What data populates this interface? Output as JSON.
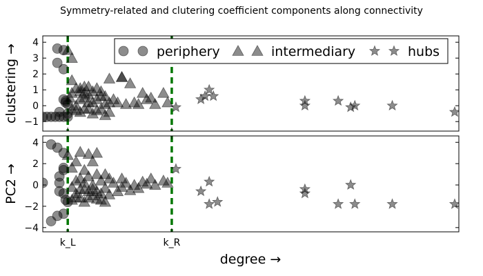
{
  "chart_data": {
    "type": "scatter",
    "title": "Symmetry-related and clutering coefficient components along connectivity",
    "xlabel": "degree →",
    "xlim": [
      0,
      100
    ],
    "vlines": [
      {
        "x": 6,
        "label": "k_L",
        "color": "#007700"
      },
      {
        "x": 31,
        "label": "k_R",
        "color": "#007700"
      }
    ],
    "legend": {
      "placement": "top-right",
      "entries": [
        {
          "name": "periphery",
          "marker": "circle"
        },
        {
          "name": "intermediary",
          "marker": "triangle"
        },
        {
          "name": "hubs",
          "marker": "star"
        }
      ]
    },
    "subplots": [
      {
        "ylabel": "clustering →",
        "ylim": [
          -1.6,
          4.4
        ],
        "yticks": [
          "4",
          "3",
          "2",
          "1",
          "0",
          "−1"
        ],
        "ytick_values": [
          4,
          3,
          2,
          1,
          0,
          -1
        ],
        "series": [
          {
            "name": "periphery",
            "marker": "circle",
            "points": [
              [
                0,
                -0.7
              ],
              [
                1,
                -0.7
              ],
              [
                2,
                -0.7
              ],
              [
                3,
                -0.7
              ],
              [
                4,
                -0.7
              ],
              [
                5,
                -0.7
              ],
              [
                6,
                -0.7
              ],
              [
                3.5,
                3.6
              ],
              [
                5,
                3.5
              ],
              [
                3.5,
                2.7
              ],
              [
                5,
                2.3
              ],
              [
                5,
                0.4
              ],
              [
                5.5,
                0.2
              ],
              [
                6,
                0.1
              ],
              [
                4,
                -0.4
              ],
              [
                5.5,
                0.3
              ],
              [
                6,
                -0.5
              ]
            ]
          },
          {
            "name": "intermediary",
            "marker": "triangle",
            "points": [
              [
                6,
                3.5
              ],
              [
                7,
                3.0
              ],
              [
                7,
                1.6
              ],
              [
                7,
                0.8
              ],
              [
                8,
                1.1
              ],
              [
                8,
                -0.3
              ],
              [
                9,
                0.4
              ],
              [
                9,
                1.1
              ],
              [
                10,
                -0.2
              ],
              [
                10,
                0.8
              ],
              [
                11,
                1.2
              ],
              [
                11,
                0.2
              ],
              [
                12,
                -0.5
              ],
              [
                12,
                0.9
              ],
              [
                13,
                1.1
              ],
              [
                13,
                0.4
              ],
              [
                14,
                -0.2
              ],
              [
                14,
                0.9
              ],
              [
                15,
                0.6
              ],
              [
                15,
                -0.6
              ],
              [
                16,
                1.7
              ],
              [
                16,
                0.2
              ],
              [
                17,
                0.4
              ],
              [
                18,
                0.2
              ],
              [
                19,
                1.8
              ],
              [
                19,
                1.8
              ],
              [
                20,
                0.1
              ],
              [
                21,
                1.4
              ],
              [
                22,
                0.2
              ],
              [
                23,
                0.1
              ],
              [
                24,
                0.8
              ],
              [
                25,
                0.4
              ],
              [
                26,
                0.5
              ],
              [
                27,
                0.1
              ],
              [
                29,
                0.8
              ],
              [
                30,
                0.2
              ],
              [
                8,
                0.0
              ],
              [
                9,
                -0.4
              ],
              [
                10,
                0.5
              ],
              [
                11,
                -0.2
              ],
              [
                12,
                0.2
              ],
              [
                7,
                -0.2
              ],
              [
                6.5,
                0.5
              ],
              [
                14,
                0.6
              ],
              [
                13,
                -0.3
              ],
              [
                15,
                0.1
              ],
              [
                16,
                -0.4
              ],
              [
                9,
                0.9
              ],
              [
                10,
                1.2
              ],
              [
                11,
                0.7
              ]
            ]
          },
          {
            "name": "hubs",
            "marker": "star",
            "points": [
              [
                32,
                -0.1
              ],
              [
                38,
                0.4
              ],
              [
                40,
                1.0
              ],
              [
                39,
                0.6
              ],
              [
                41,
                0.6
              ],
              [
                63,
                0.3
              ],
              [
                63,
                0.0
              ],
              [
                71,
                0.3
              ],
              [
                74,
                -0.1
              ],
              [
                75,
                0.0
              ],
              [
                84,
                0.0
              ],
              [
                99,
                -0.4
              ]
            ]
          }
        ]
      },
      {
        "ylabel": "PC2 →",
        "ylim": [
          -4.4,
          4.6
        ],
        "yticks": [
          "4",
          "2",
          "0",
          "−2",
          "−4"
        ],
        "ytick_values": [
          4,
          2,
          0,
          -2,
          -4
        ],
        "series": [
          {
            "name": "periphery",
            "marker": "circle",
            "points": [
              [
                0,
                0.2
              ],
              [
                2,
                3.8
              ],
              [
                3.5,
                3.5
              ],
              [
                5,
                3.0
              ],
              [
                5,
                1.6
              ],
              [
                5,
                1.4
              ],
              [
                4,
                0.8
              ],
              [
                4,
                0.2
              ],
              [
                4,
                -0.6
              ],
              [
                5,
                -0.8
              ],
              [
                3.5,
                -2.9
              ],
              [
                5,
                -2.7
              ],
              [
                2,
                -3.4
              ],
              [
                5.5,
                -1.4
              ],
              [
                6,
                -1.6
              ]
            ]
          },
          {
            "name": "intermediary",
            "marker": "triangle",
            "points": [
              [
                6,
                2.8
              ],
              [
                7,
                1.6
              ],
              [
                7,
                -1.4
              ],
              [
                8,
                2.2
              ],
              [
                8,
                0.4
              ],
              [
                8,
                -0.8
              ],
              [
                9,
                3.1
              ],
              [
                9,
                0.6
              ],
              [
                9,
                -1.2
              ],
              [
                10,
                1.4
              ],
              [
                10,
                -0.4
              ],
              [
                10,
                -1.6
              ],
              [
                11,
                2.9
              ],
              [
                11,
                0.8
              ],
              [
                11,
                -0.6
              ],
              [
                12,
                2.2
              ],
              [
                12,
                0.0
              ],
              [
                12,
                -1.0
              ],
              [
                13,
                3.0
              ],
              [
                13,
                1.0
              ],
              [
                13,
                -1.3
              ],
              [
                14,
                0.4
              ],
              [
                14,
                -0.8
              ],
              [
                15,
                1.0
              ],
              [
                15,
                -0.3
              ],
              [
                15,
                -1.6
              ],
              [
                16,
                0.6
              ],
              [
                16,
                -0.9
              ],
              [
                17,
                0.2
              ],
              [
                18,
                -0.6
              ],
              [
                19,
                0.6
              ],
              [
                19,
                -0.2
              ],
              [
                20,
                0.2
              ],
              [
                21,
                -0.5
              ],
              [
                22,
                0.0
              ],
              [
                23,
                -0.3
              ],
              [
                24,
                0.3
              ],
              [
                25,
                0.1
              ],
              [
                26,
                0.6
              ],
              [
                27,
                0.0
              ],
              [
                29,
                0.4
              ],
              [
                30,
                0.2
              ],
              [
                7,
                -0.2
              ],
              [
                8,
                -1.2
              ],
              [
                9,
                -0.4
              ],
              [
                10,
                0.2
              ],
              [
                11,
                -1.2
              ],
              [
                12,
                -0.4
              ],
              [
                13,
                -0.6
              ],
              [
                14,
                -1.4
              ]
            ]
          },
          {
            "name": "hubs",
            "marker": "star",
            "points": [
              [
                32,
                1.5
              ],
              [
                38,
                -0.6
              ],
              [
                40,
                0.3
              ],
              [
                40,
                -1.8
              ],
              [
                42,
                -1.6
              ],
              [
                63,
                -0.4
              ],
              [
                63,
                -0.8
              ],
              [
                71,
                -1.8
              ],
              [
                74,
                0.0
              ],
              [
                75,
                -1.8
              ],
              [
                84,
                -1.8
              ],
              [
                99,
                -1.8
              ]
            ]
          }
        ]
      }
    ]
  }
}
